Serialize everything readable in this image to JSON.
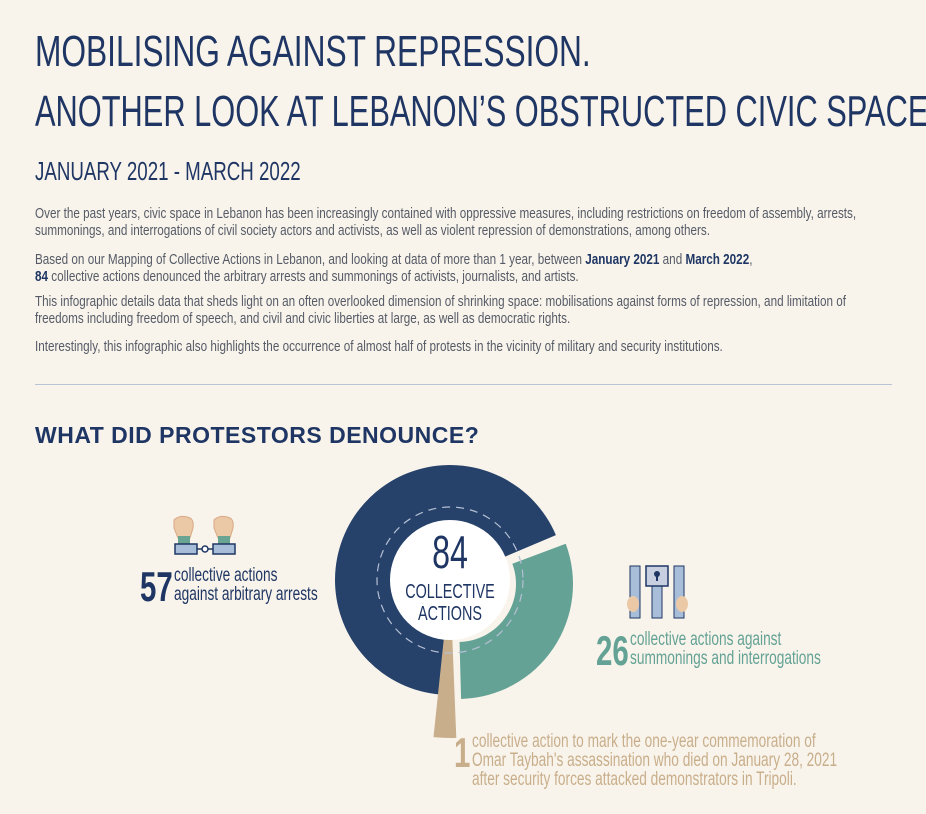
{
  "header": {
    "title_line1": "MOBILISING AGAINST REPRESSION.",
    "title_line2": "ANOTHER LOOK AT LEBANON’S OBSTRUCTED CIVIC SPACE",
    "subtitle": "JANUARY 2021 - MARCH 2022"
  },
  "intro": {
    "p1": "Over the past years, civic space in Lebanon has been increasingly contained with oppressive measures, including restrictions on freedom of assembly, arrests, summonings, and interrogations of civil society actors and activists, as well as violent repression of demonstrations, among others.",
    "p2_a": "Based on our Mapping of Collective Actions in Lebanon, and looking at data of more than 1 year, between ",
    "p2_b": "January 2021",
    "p2_c": " and ",
    "p2_d": "March 2022",
    "p2_e": ",",
    "p2_f": "84",
    "p2_g": " collective actions denounced the arbitrary arrests and summonings of activists, journalists, and artists.",
    "p3": "This infographic details data that sheds light on an often overlooked dimension of shrinking space: mobilisations against forms of repression, and limitation of freedoms including freedom of speech, and civil and civic liberties at large, as well as democratic rights.",
    "p4": "Interestingly, this infographic also  highlights the occurrence of almost half of protests in the vicinity of military and security institutions."
  },
  "section": {
    "heading": "WHAT DID PROTESTORS DENOUNCE?"
  },
  "colors": {
    "navy": "#26416a",
    "teal": "#64a295",
    "tan": "#c9ae8b",
    "text": "#1f3664"
  },
  "chart_data": {
    "type": "pie",
    "donut": true,
    "center_value": "84",
    "center_label_1": "COLLECTIVE",
    "center_label_2": "ACTIONS",
    "total": 84,
    "slices": [
      {
        "value": 57,
        "label_1": "collective actions",
        "label_2": "against arbitrary arrests",
        "color": "#26416a"
      },
      {
        "value": 26,
        "label_1": "collective actions against",
        "label_2": "summonings and interrogations",
        "color": "#64a295"
      },
      {
        "value": 1,
        "label_1": "collective action to mark the one-year commemoration of",
        "label_2": "Omar Taybah's assassination who died on January 28, 2021",
        "label_3": "after security forces attacked demonstrators in Tripoli.",
        "color": "#c9ae8b"
      }
    ],
    "icons": [
      "handcuffed-fists-icon",
      "prison-bars-icon"
    ]
  }
}
